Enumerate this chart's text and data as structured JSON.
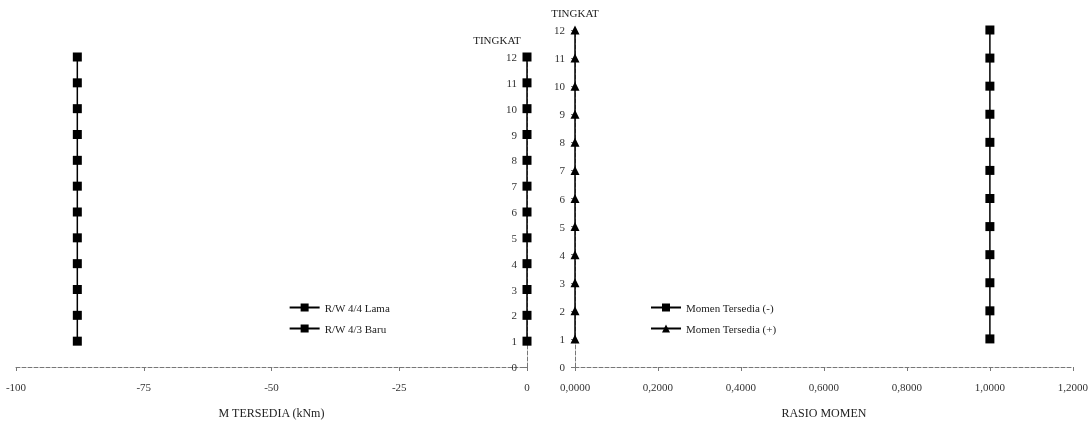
{
  "chart_data": [
    {
      "type": "line",
      "xlabel": "M TERSEDIA (kNm)",
      "ylabel": "TINGKAT",
      "xlim": [
        -100,
        0
      ],
      "xticks": [
        -100,
        -75,
        -50,
        -25,
        0
      ],
      "ylim": [
        0,
        12
      ],
      "yticks": [
        0,
        1,
        2,
        3,
        4,
        5,
        6,
        7,
        8,
        9,
        10,
        11,
        12
      ],
      "grid": false,
      "legend": "bottom right",
      "marker": "square",
      "line_style": "solid",
      "series": [
        {
          "name": "R/W 4/4 Lama",
          "color": "#000000",
          "x": [
            -88,
            -88,
            -88,
            -88,
            -88,
            -88,
            -88,
            -88,
            -88,
            -88,
            -88,
            -88
          ],
          "values": [
            1,
            2,
            3,
            4,
            5,
            6,
            7,
            8,
            9,
            10,
            11,
            12
          ]
        },
        {
          "name": "R/W 4/3 Baru",
          "color": "#000000",
          "x": [
            0,
            0,
            0,
            0,
            0,
            0,
            0,
            0,
            0,
            0,
            0,
            0
          ],
          "values": [
            1,
            2,
            3,
            4,
            5,
            6,
            7,
            8,
            9,
            10,
            11,
            12
          ]
        }
      ]
    },
    {
      "type": "line",
      "xlabel": "RASIO MOMEN",
      "ylabel": "TINGKAT",
      "xlim": [
        0,
        1.2
      ],
      "xticks": [
        {
          "value": 0,
          "label": "0,0000"
        },
        {
          "value": 0.2,
          "label": "0,2000"
        },
        {
          "value": 0.4,
          "label": "0,4000"
        },
        {
          "value": 0.6,
          "label": "0,6000"
        },
        {
          "value": 0.8,
          "label": "0,8000"
        },
        {
          "value": 1,
          "label": "1,0000"
        },
        {
          "value": 1.2,
          "label": "1,2000"
        }
      ],
      "ylim": [
        0,
        12
      ],
      "yticks": [
        0,
        1,
        2,
        3,
        4,
        5,
        6,
        7,
        8,
        9,
        10,
        11,
        12
      ],
      "grid": false,
      "legend": "bottom left",
      "line_style": "solid",
      "series": [
        {
          "name": "Momen Tersedia (-)",
          "color": "#000000",
          "marker": "square",
          "x": [
            1,
            1,
            1,
            1,
            1,
            1,
            1,
            1,
            1,
            1,
            1,
            1
          ],
          "values": [
            1,
            2,
            3,
            4,
            5,
            6,
            7,
            8,
            9,
            10,
            11,
            12
          ]
        },
        {
          "name": "Momen Tersedia (+)",
          "color": "#000000",
          "marker": "triangle",
          "x": [
            0,
            0,
            0,
            0,
            0,
            0,
            0,
            0,
            0,
            0,
            0,
            0
          ],
          "values": [
            1,
            2,
            3,
            4,
            5,
            6,
            7,
            8,
            9,
            10,
            11,
            12
          ]
        }
      ]
    }
  ]
}
